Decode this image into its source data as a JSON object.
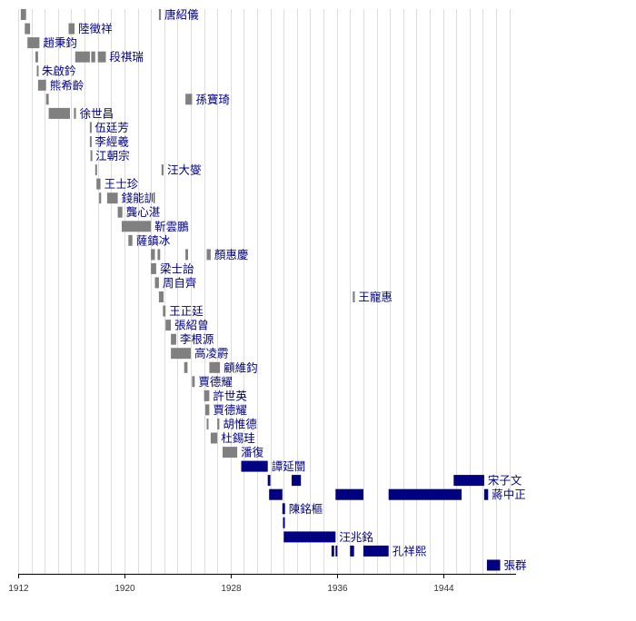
{
  "chart_data": {
    "type": "bar",
    "orientation": "horizontal-timeline",
    "xlim": [
      1912,
      1949.5
    ],
    "x_ticks": [
      1912,
      1920,
      1928,
      1936,
      1944
    ],
    "colors": {
      "beiyang": "#808080",
      "nationalist": "#000080",
      "grid": "#dddddd",
      "axis": "#000000",
      "label": "#000080"
    },
    "rows": [
      {
        "label": "唐紹儀",
        "group": "beiyang",
        "segments": [
          [
            1912.2,
            1912.6
          ],
          [
            1922.6,
            1922.75
          ]
        ]
      },
      {
        "label": "陸徵祥",
        "group": "beiyang",
        "segments": [
          [
            1912.5,
            1912.9
          ],
          [
            1915.8,
            1916.25
          ]
        ]
      },
      {
        "label": "趙秉鈞",
        "group": "beiyang",
        "segments": [
          [
            1912.7,
            1913.6
          ]
        ]
      },
      {
        "label": "段祺瑞",
        "group": "beiyang",
        "segments": [
          [
            1913.3,
            1913.5
          ],
          [
            1916.3,
            1917.4
          ],
          [
            1917.5,
            1917.8
          ],
          [
            1918.0,
            1918.6
          ]
        ]
      },
      {
        "label": "朱啟鈐",
        "group": "beiyang",
        "segments": [
          [
            1913.4,
            1913.5
          ]
        ]
      },
      {
        "label": "熊希齡",
        "group": "beiyang",
        "segments": [
          [
            1913.5,
            1914.1
          ]
        ]
      },
      {
        "label": "孫寶琦",
        "group": "beiyang",
        "segments": [
          [
            1914.1,
            1914.3
          ],
          [
            1924.6,
            1925.1
          ]
        ]
      },
      {
        "label": "徐世昌",
        "group": "beiyang",
        "segments": [
          [
            1914.3,
            1915.9
          ],
          [
            1916.2,
            1916.35
          ]
        ]
      },
      {
        "label": "伍廷芳",
        "group": "beiyang",
        "segments": [
          [
            1917.4,
            1917.5
          ]
        ]
      },
      {
        "label": "李經羲",
        "group": "beiyang",
        "segments": [
          [
            1917.4,
            1917.5
          ]
        ]
      },
      {
        "label": "江朝宗",
        "group": "beiyang",
        "segments": [
          [
            1917.45,
            1917.55
          ]
        ]
      },
      {
        "label": "汪大燮",
        "group": "beiyang",
        "segments": [
          [
            1917.8,
            1917.9
          ],
          [
            1922.8,
            1922.95
          ]
        ]
      },
      {
        "label": "王士珍",
        "group": "beiyang",
        "segments": [
          [
            1917.9,
            1918.2
          ]
        ]
      },
      {
        "label": "錢能訓",
        "group": "beiyang",
        "segments": [
          [
            1918.1,
            1918.25
          ],
          [
            1918.7,
            1919.5
          ]
        ]
      },
      {
        "label": "龔心湛",
        "group": "beiyang",
        "segments": [
          [
            1919.5,
            1919.85
          ]
        ]
      },
      {
        "label": "靳雲鵬",
        "group": "beiyang",
        "segments": [
          [
            1919.8,
            1922.0
          ]
        ]
      },
      {
        "label": "薩鎮冰",
        "group": "beiyang",
        "segments": [
          [
            1920.3,
            1920.6
          ]
        ]
      },
      {
        "label": "顏惠慶",
        "group": "beiyang",
        "segments": [
          [
            1922.0,
            1922.3
          ],
          [
            1922.5,
            1922.7
          ],
          [
            1924.6,
            1924.8
          ],
          [
            1926.2,
            1926.5
          ]
        ]
      },
      {
        "label": "梁士詒",
        "group": "beiyang",
        "segments": [
          [
            1922.0,
            1922.4
          ]
        ]
      },
      {
        "label": "周自齊",
        "group": "beiyang",
        "segments": [
          [
            1922.3,
            1922.6
          ]
        ]
      },
      {
        "label": "王寵惠",
        "group": "beiyang",
        "segments": [
          [
            1922.6,
            1922.95
          ],
          [
            1937.2,
            1937.35
          ]
        ]
      },
      {
        "label": "王正廷",
        "group": "beiyang",
        "segments": [
          [
            1922.9,
            1923.1
          ]
        ]
      },
      {
        "label": "張紹曾",
        "group": "beiyang",
        "segments": [
          [
            1923.1,
            1923.5
          ]
        ]
      },
      {
        "label": "李根源",
        "group": "beiyang",
        "segments": [
          [
            1923.5,
            1923.9
          ]
        ]
      },
      {
        "label": "高凌霨",
        "group": "beiyang",
        "segments": [
          [
            1923.5,
            1925.0
          ]
        ]
      },
      {
        "label": "顧維鈞",
        "group": "beiyang",
        "segments": [
          [
            1924.5,
            1924.75
          ],
          [
            1926.4,
            1927.2
          ]
        ]
      },
      {
        "label": "賈德耀",
        "group": "beiyang",
        "segments": [
          [
            1925.1,
            1925.3
          ]
        ]
      },
      {
        "label": "許世英",
        "group": "beiyang",
        "segments": [
          [
            1926.0,
            1926.4
          ]
        ]
      },
      {
        "label": "賈德耀",
        "group": "beiyang",
        "segments": [
          [
            1926.1,
            1926.4
          ]
        ]
      },
      {
        "label": "胡惟德",
        "group": "beiyang",
        "segments": [
          [
            1926.2,
            1926.3
          ],
          [
            1927.0,
            1927.15
          ]
        ]
      },
      {
        "label": "杜錫珪",
        "group": "beiyang",
        "segments": [
          [
            1926.5,
            1927.0
          ]
        ]
      },
      {
        "label": "潘復",
        "group": "beiyang",
        "segments": [
          [
            1927.4,
            1928.5
          ]
        ]
      },
      {
        "label": "譚延闓",
        "group": "nationalist",
        "segments": [
          [
            1928.8,
            1930.8
          ]
        ]
      },
      {
        "label": "宋子文",
        "group": "nationalist",
        "segments": [
          [
            1930.8,
            1931.0
          ],
          [
            1932.6,
            1933.3
          ],
          [
            1944.8,
            1947.1
          ]
        ]
      },
      {
        "label": "蔣中正",
        "group": "nationalist",
        "segments": [
          [
            1930.9,
            1931.9
          ],
          [
            1935.9,
            1938.0
          ],
          [
            1939.9,
            1945.4
          ],
          [
            1947.1,
            1947.4
          ]
        ]
      },
      {
        "label": "陳銘樞",
        "group": "nationalist",
        "segments": [
          [
            1931.9,
            1932.1
          ]
        ]
      },
      {
        "label": "",
        "group": "nationalist",
        "segments": [
          [
            1931.95,
            1932.05
          ]
        ]
      },
      {
        "label": "汪兆銘",
        "group": "nationalist",
        "segments": [
          [
            1932.0,
            1935.9
          ]
        ]
      },
      {
        "label": "孔祥熙",
        "group": "nationalist",
        "segments": [
          [
            1935.6,
            1935.8
          ],
          [
            1935.9,
            1936.0
          ],
          [
            1937.0,
            1937.3
          ],
          [
            1938.0,
            1939.9
          ]
        ]
      },
      {
        "label": "張群",
        "group": "nationalist",
        "segments": [
          [
            1947.3,
            1948.3
          ]
        ]
      }
    ]
  }
}
